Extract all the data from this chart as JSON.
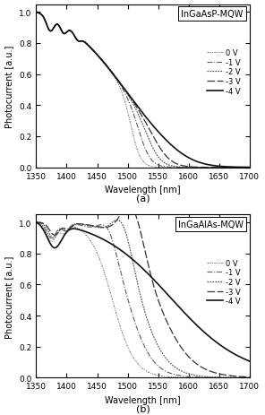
{
  "title_a": "InGaAsP-MQW",
  "title_b": "InGaAlAs-MQW",
  "xlabel": "Wavelength [nm]",
  "ylabel": "Photocurrent [a.u.]",
  "xlim": [
    1350,
    1700
  ],
  "ylim": [
    0.0,
    1.05
  ],
  "label_a": "(a)",
  "label_b": "(b)",
  "legend_labels": [
    "0 V",
    "-1 V",
    "-2 V",
    "-3 V",
    "-4 V"
  ],
  "xticks": [
    1350,
    1400,
    1450,
    1500,
    1550,
    1600,
    1650,
    1700
  ],
  "yticks": [
    0.0,
    0.2,
    0.4,
    0.6,
    0.8,
    1.0
  ]
}
